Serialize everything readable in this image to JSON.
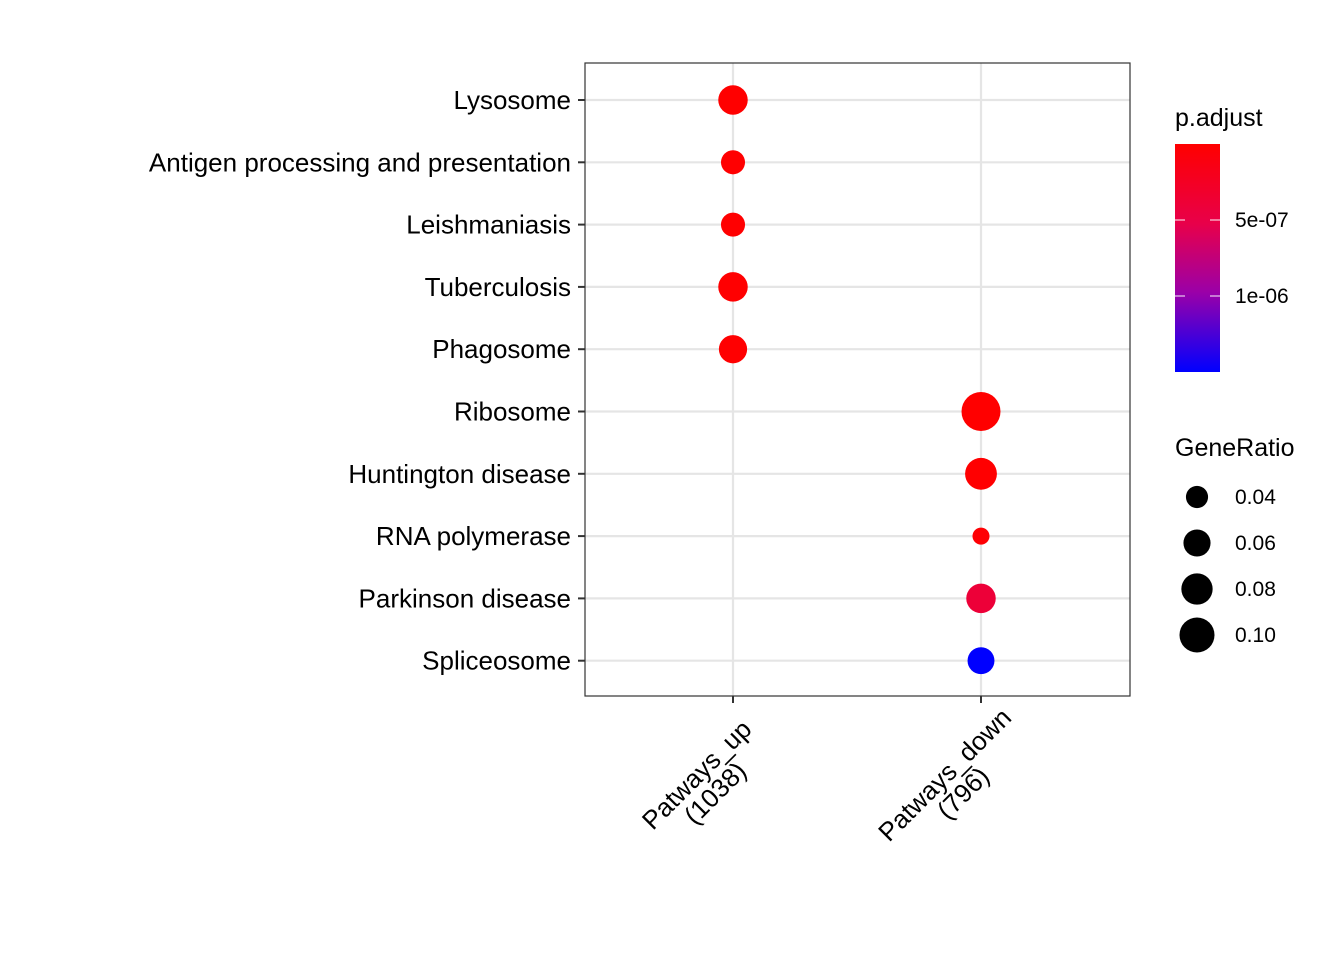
{
  "chart_data": {
    "type": "scatter",
    "x_categories": [
      "Patways_up\n(1038)",
      "Patways_down\n(796)"
    ],
    "y_categories": [
      "Lysosome",
      "Antigen processing and presentation",
      "Leishmaniasis",
      "Tuberculosis",
      "Phagosome",
      "Ribosome",
      "Huntington disease",
      "RNA polymerase",
      "Parkinson disease",
      "Spliceosome"
    ],
    "points": [
      {
        "x": "Patways_up\n(1038)",
        "y": "Lysosome",
        "GeneRatio": 0.06,
        "p_adjust": 1e-09
      },
      {
        "x": "Patways_up\n(1038)",
        "y": "Antigen processing and presentation",
        "GeneRatio": 0.04,
        "p_adjust": 1e-08
      },
      {
        "x": "Patways_up\n(1038)",
        "y": "Leishmaniasis",
        "GeneRatio": 0.04,
        "p_adjust": 1e-08
      },
      {
        "x": "Patways_up\n(1038)",
        "y": "Tuberculosis",
        "GeneRatio": 0.06,
        "p_adjust": 1e-08
      },
      {
        "x": "Patways_up\n(1038)",
        "y": "Phagosome",
        "GeneRatio": 0.055,
        "p_adjust": 1e-08
      },
      {
        "x": "Patways_down\n(796)",
        "y": "Ribosome",
        "GeneRatio": 0.105,
        "p_adjust": 1e-12
      },
      {
        "x": "Patways_down\n(796)",
        "y": "Huntington disease",
        "GeneRatio": 0.07,
        "p_adjust": 1e-08
      },
      {
        "x": "Patways_down\n(796)",
        "y": "RNA polymerase",
        "GeneRatio": 0.02,
        "p_adjust": 3e-08
      },
      {
        "x": "Patways_down\n(796)",
        "y": "Parkinson disease",
        "GeneRatio": 0.06,
        "p_adjust": 4e-07
      },
      {
        "x": "Patways_down\n(796)",
        "y": "Spliceosome",
        "GeneRatio": 0.05,
        "p_adjust": 1.5e-06
      }
    ],
    "color_legend": {
      "title": "p.adjust",
      "ticks": [
        {
          "value": 5e-07,
          "label": "5e-07"
        },
        {
          "value": 1e-06,
          "label": "1e-06"
        }
      ],
      "range": [
        0,
        1.5e-06
      ],
      "low_color": "#ff0000",
      "high_color": "#0000ff"
    },
    "size_legend": {
      "title": "GeneRatio",
      "entries": [
        {
          "value": 0.04,
          "label": "0.04"
        },
        {
          "value": 0.06,
          "label": "0.06"
        },
        {
          "value": 0.08,
          "label": "0.08"
        },
        {
          "value": 0.1,
          "label": "0.10"
        }
      ]
    },
    "grid": true,
    "legend_position": "right",
    "xlabel": "",
    "ylabel": ""
  }
}
